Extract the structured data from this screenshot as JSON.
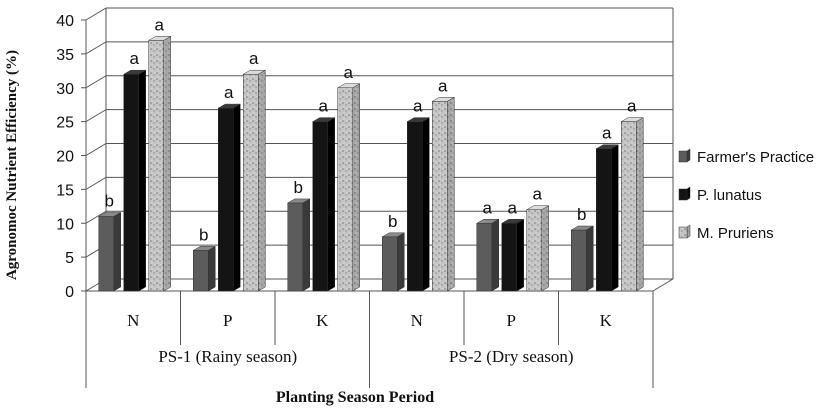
{
  "chart_data": {
    "type": "bar",
    "title": "",
    "ylabel": "Agronomoc Nutrient Efficiency (%)",
    "xlabel": "Planting Season Period",
    "ylim": [
      0,
      40
    ],
    "yticks": [
      0,
      5,
      10,
      15,
      20,
      25,
      30,
      35,
      40
    ],
    "grid": true,
    "legend_position": "right",
    "categories": [
      "N",
      "P",
      "K",
      "N",
      "P",
      "K"
    ],
    "groups": [
      {
        "label": "PS-1 (Rainy season)",
        "categories": [
          "N",
          "P",
          "K"
        ]
      },
      {
        "label": "PS-2 (Dry season)",
        "categories": [
          "N",
          "P",
          "K"
        ]
      }
    ],
    "series": [
      {
        "name": "Farmer's Practice",
        "values": [
          11,
          6,
          13,
          8,
          10,
          9
        ],
        "letters": [
          "b",
          "b",
          "b",
          "b",
          "a",
          "b"
        ],
        "color": "#5a5a5a"
      },
      {
        "name": "P. lunatus",
        "values": [
          32,
          27,
          25,
          25,
          10,
          21
        ],
        "letters": [
          "a",
          "a",
          "a",
          "a",
          "a",
          "a"
        ],
        "color": "#1a1a1a"
      },
      {
        "name": "M. Pruriens",
        "values": [
          37,
          32,
          30,
          28,
          12,
          25
        ],
        "letters": [
          "a",
          "a",
          "a",
          "a",
          "a",
          "a"
        ],
        "color": "#c8c8c8"
      }
    ]
  }
}
